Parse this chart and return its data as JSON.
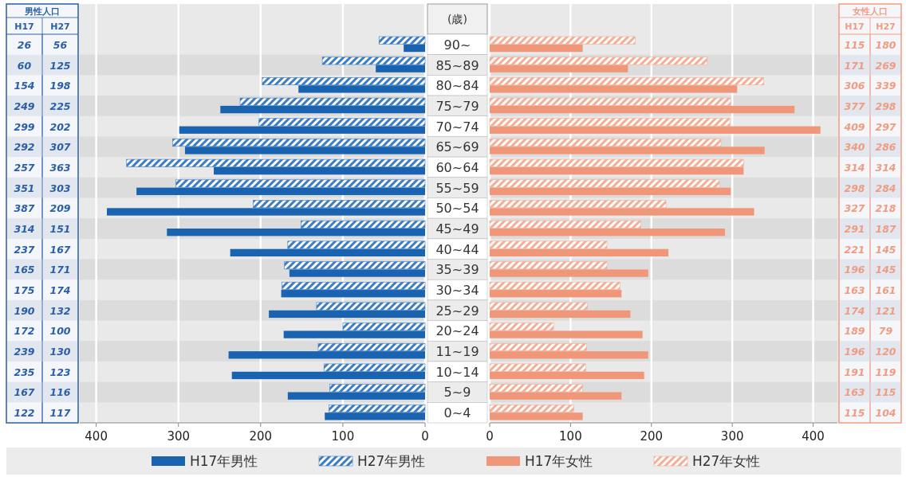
{
  "chart_data": [
    {
      "type": "bar",
      "orientation": "horizontal",
      "ylabel": "(歳)",
      "annotations": [
        "男性人口",
        "H17",
        "H27"
      ],
      "categories": [
        "90~",
        "85~89",
        "80~84",
        "75~79",
        "70~74",
        "65~69",
        "60~64",
        "55~59",
        "50~54",
        "45~49",
        "40~44",
        "35~39",
        "30~34",
        "25~29",
        "20~24",
        "11~19",
        "10~14",
        "5~9",
        "0~4"
      ],
      "series": [
        {
          "name": "H17年男性",
          "color": "#1a63b0",
          "values": [
            26,
            60,
            154,
            249,
            299,
            292,
            257,
            351,
            387,
            314,
            237,
            165,
            175,
            190,
            172,
            239,
            235,
            167,
            122
          ]
        },
        {
          "name": "H27年男性",
          "color": "#3c7dc4",
          "values": [
            56,
            125,
            198,
            225,
            202,
            307,
            363,
            303,
            209,
            151,
            167,
            171,
            174,
            132,
            100,
            130,
            123,
            116,
            117
          ]
        }
      ],
      "xlim": [
        420,
        0
      ],
      "xticks": [
        400,
        300,
        200,
        100,
        0
      ],
      "grid": "x",
      "legend": "bottom",
      "data_labels": true
    },
    {
      "type": "bar",
      "orientation": "horizontal",
      "annotations": [
        "女性人口",
        "H17",
        "H27"
      ],
      "tick_labels": "x",
      "categories": [
        null,
        null,
        null,
        null,
        null,
        null,
        null,
        null,
        null,
        null,
        null,
        null,
        null,
        null,
        null,
        null,
        null,
        null,
        null
      ],
      "series": [
        {
          "name": "H17年女性",
          "color": "#f0977a",
          "values": [
            115,
            171,
            306,
            377,
            409,
            340,
            314,
            298,
            327,
            291,
            221,
            196,
            163,
            174,
            189,
            196,
            191,
            163,
            115
          ]
        },
        {
          "name": "H27年女性",
          "color": "#f4ae96",
          "values": [
            180,
            269,
            339,
            298,
            297,
            286,
            314,
            284,
            218,
            187,
            145,
            145,
            161,
            121,
            79,
            120,
            119,
            115,
            104
          ]
        }
      ],
      "xlim": [
        0,
        430
      ],
      "xticks": [
        0,
        100,
        200,
        300,
        400
      ],
      "grid": "x",
      "legend": "bottom",
      "data_labels": true
    }
  ]
}
